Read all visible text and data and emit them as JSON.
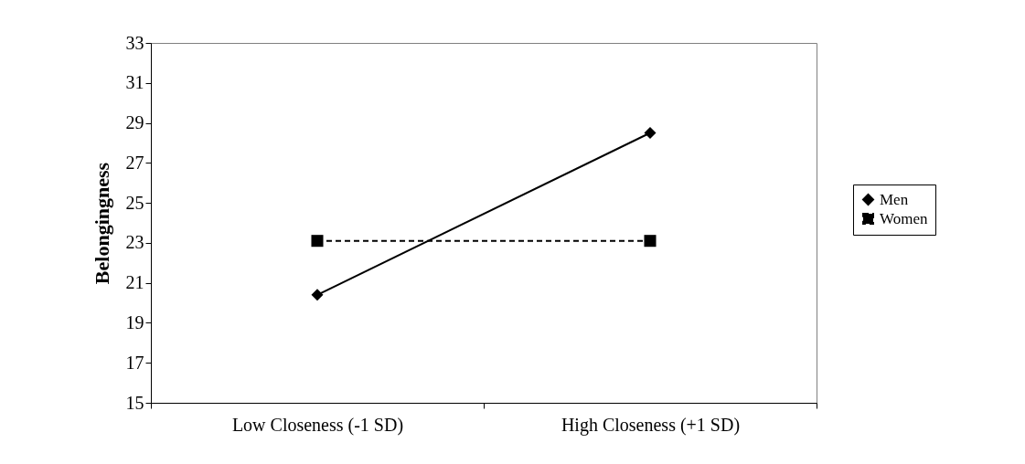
{
  "chart_data": {
    "type": "line",
    "ylabel": "Belongingness",
    "categories": [
      "Low Closeness (-1 SD)",
      "High Closeness (+1 SD)"
    ],
    "series": [
      {
        "name": "Men",
        "color": "#000000",
        "values": [
          20.4,
          28.5
        ],
        "marker": "diamond",
        "line_style": "solid"
      },
      {
        "name": "Women",
        "color": "#000000",
        "values": [
          23.1,
          23.1
        ],
        "marker": "square",
        "line_style": "dashed"
      }
    ],
    "ylim": [
      15,
      33
    ],
    "yticks": [
      15,
      17,
      19,
      21,
      23,
      25,
      27,
      29,
      31,
      33
    ],
    "grid": false,
    "legend": "right"
  }
}
